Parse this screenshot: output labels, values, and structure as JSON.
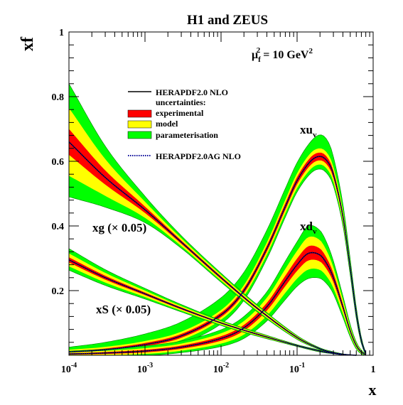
{
  "chart_data": {
    "type": "area",
    "title": "H1 and ZEUS",
    "xlabel": "x",
    "ylabel": "xf",
    "scale_note": {
      "base": "μ",
      "sub": "f",
      "sup": "2",
      "rest": " = 10 GeV",
      "rest_sup": "2"
    },
    "x_scale": "log",
    "xlim": [
      0.0001,
      1
    ],
    "ylim": [
      0,
      1
    ],
    "grid": false,
    "legend_position": "upper-left",
    "x_ticks": [
      {
        "value": 0.0001,
        "base": "10",
        "exp": "-4"
      },
      {
        "value": 0.001,
        "base": "10",
        "exp": "-3"
      },
      {
        "value": 0.01,
        "base": "10",
        "exp": "-2"
      },
      {
        "value": 0.1,
        "base": "10",
        "exp": "-1"
      },
      {
        "value": 1,
        "base": "1",
        "exp": ""
      }
    ],
    "y_ticks": [
      {
        "value": 0.2,
        "label": "0.2"
      },
      {
        "value": 0.4,
        "label": "0.4"
      },
      {
        "value": 0.6,
        "label": "0.6"
      },
      {
        "value": 0.8,
        "label": "0.8"
      },
      {
        "value": 1.0,
        "label": "1"
      }
    ],
    "legend": {
      "central": "HERAPDF2.0 NLO",
      "uncertainties": "uncertainties:",
      "items": [
        {
          "label": "experimental",
          "color": "#ff0000"
        },
        {
          "label": "model",
          "color": "#ffff00"
        },
        {
          "label": "parameterisation",
          "color": "#00ff00"
        }
      ],
      "alt": "HERAPDF2.0AG NLO"
    },
    "colors": {
      "experimental": "#ff0000",
      "model": "#ffff00",
      "parameterisation": "#00ff00",
      "central": "#000000",
      "alt": "#000099",
      "band_edge": "#008000"
    },
    "curve_labels": [
      {
        "id": "xuv",
        "base": "xu",
        "sub": "v"
      },
      {
        "id": "xdv",
        "base": "xd",
        "sub": "v"
      },
      {
        "id": "xg",
        "text": "xg (× 0.05)"
      },
      {
        "id": "xS",
        "text": "xS (× 0.05)"
      }
    ],
    "series": [
      {
        "name": "xu_v",
        "x": [
          0.0001,
          0.0003,
          0.001,
          0.003,
          0.01,
          0.02,
          0.04,
          0.07,
          0.1,
          0.15,
          0.2,
          0.25,
          0.3,
          0.4,
          0.5,
          0.6,
          0.7,
          0.8
        ],
        "central": [
          0.01,
          0.017,
          0.033,
          0.06,
          0.125,
          0.2,
          0.33,
          0.46,
          0.54,
          0.6,
          0.615,
          0.6,
          0.56,
          0.43,
          0.27,
          0.13,
          0.045,
          0.005
        ],
        "exp_half": [
          0.003,
          0.004,
          0.005,
          0.006,
          0.007,
          0.008,
          0.009,
          0.01,
          0.011,
          0.012,
          0.012,
          0.012,
          0.011,
          0.009,
          0.007,
          0.005,
          0.003,
          0.001
        ],
        "model_half": [
          0.004,
          0.005,
          0.006,
          0.007,
          0.008,
          0.009,
          0.01,
          0.011,
          0.012,
          0.013,
          0.013,
          0.013,
          0.012,
          0.01,
          0.008,
          0.006,
          0.003,
          0.001
        ],
        "par_up": [
          0.008,
          0.014,
          0.022,
          0.03,
          0.038,
          0.04,
          0.038,
          0.035,
          0.033,
          0.035,
          0.042,
          0.04,
          0.032,
          0.02,
          0.012,
          0.008,
          0.004,
          0.001
        ],
        "par_down": [
          0.006,
          0.008,
          0.01,
          0.012,
          0.013,
          0.013,
          0.013,
          0.012,
          0.012,
          0.013,
          0.014,
          0.014,
          0.013,
          0.01,
          0.008,
          0.006,
          0.004,
          0.001
        ]
      },
      {
        "name": "xd_v",
        "x": [
          0.0001,
          0.0003,
          0.001,
          0.003,
          0.01,
          0.02,
          0.04,
          0.07,
          0.1,
          0.14,
          0.2,
          0.25,
          0.3,
          0.4,
          0.5,
          0.6,
          0.7,
          0.8
        ],
        "central": [
          0.004,
          0.007,
          0.013,
          0.025,
          0.052,
          0.085,
          0.15,
          0.23,
          0.28,
          0.315,
          0.31,
          0.28,
          0.24,
          0.15,
          0.075,
          0.03,
          0.01,
          0.002
        ],
        "exp_half": [
          0.002,
          0.003,
          0.004,
          0.005,
          0.007,
          0.009,
          0.012,
          0.016,
          0.019,
          0.022,
          0.02,
          0.017,
          0.014,
          0.009,
          0.005,
          0.003,
          0.002,
          0.001
        ],
        "model_half": [
          0.003,
          0.004,
          0.005,
          0.006,
          0.009,
          0.012,
          0.016,
          0.021,
          0.024,
          0.028,
          0.026,
          0.022,
          0.018,
          0.012,
          0.007,
          0.004,
          0.002,
          0.001
        ],
        "par_up": [
          0.004,
          0.005,
          0.007,
          0.008,
          0.011,
          0.014,
          0.018,
          0.024,
          0.028,
          0.035,
          0.03,
          0.025,
          0.02,
          0.013,
          0.008,
          0.004,
          0.002,
          0.001
        ],
        "par_down": [
          0.003,
          0.004,
          0.005,
          0.006,
          0.009,
          0.012,
          0.016,
          0.021,
          0.024,
          0.028,
          0.026,
          0.022,
          0.018,
          0.012,
          0.007,
          0.004,
          0.002,
          0.001
        ]
      },
      {
        "name": "xg (x 0.05)",
        "x": [
          0.0001,
          0.0003,
          0.001,
          0.003,
          0.01,
          0.03,
          0.1,
          0.2,
          0.3,
          0.4,
          0.5,
          0.6
        ],
        "central": [
          0.66,
          0.55,
          0.45,
          0.35,
          0.24,
          0.145,
          0.055,
          0.02,
          0.008,
          0.003,
          0.001,
          0.0
        ],
        "exp_half": [
          0.04,
          0.022,
          0.01,
          0.005,
          0.004,
          0.003,
          0.002,
          0.001,
          0.001,
          0.0005,
          0.0003,
          0.0
        ],
        "model_half": [
          0.065,
          0.035,
          0.015,
          0.007,
          0.005,
          0.004,
          0.002,
          0.001,
          0.001,
          0.0005,
          0.0003,
          0.0
        ],
        "par_up": [
          0.075,
          0.04,
          0.017,
          0.008,
          0.005,
          0.004,
          0.002,
          0.001,
          0.001,
          0.0005,
          0.0003,
          0.0
        ],
        "par_down": [
          0.065,
          0.035,
          0.015,
          0.007,
          0.005,
          0.004,
          0.002,
          0.001,
          0.001,
          0.0005,
          0.0003,
          0.0
        ]
      },
      {
        "name": "xS (x 0.05)",
        "x": [
          0.0001,
          0.0003,
          0.001,
          0.003,
          0.01,
          0.03,
          0.1,
          0.2,
          0.3,
          0.4,
          0.5
        ],
        "central": [
          0.295,
          0.24,
          0.19,
          0.145,
          0.1,
          0.065,
          0.03,
          0.013,
          0.006,
          0.002,
          0.0005
        ],
        "exp_half": [
          0.008,
          0.006,
          0.004,
          0.003,
          0.002,
          0.002,
          0.001,
          0.001,
          0.0005,
          0.0003,
          0.0001
        ],
        "model_half": [
          0.012,
          0.009,
          0.006,
          0.004,
          0.003,
          0.002,
          0.001,
          0.001,
          0.0005,
          0.0003,
          0.0001
        ],
        "par_up": [
          0.015,
          0.01,
          0.007,
          0.005,
          0.003,
          0.002,
          0.001,
          0.001,
          0.0005,
          0.0003,
          0.0001
        ],
        "par_down": [
          0.012,
          0.009,
          0.006,
          0.004,
          0.003,
          0.002,
          0.001,
          0.001,
          0.0005,
          0.0003,
          0.0001
        ]
      }
    ]
  }
}
